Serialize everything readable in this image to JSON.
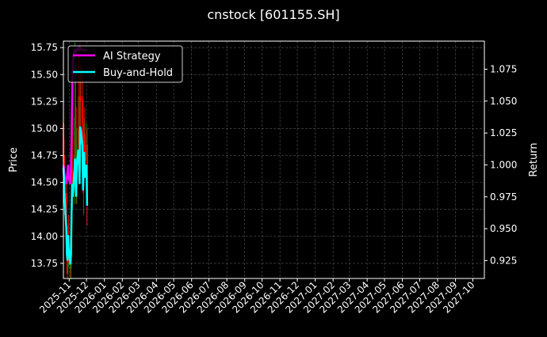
{
  "chart_data": {
    "type": "line",
    "title": "cnstock [601155.SH]",
    "ylabel": "Price",
    "y2label": "Return",
    "ylim": [
      13.61,
      15.81
    ],
    "y2lim": [
      0.911,
      1.097
    ],
    "xlim": [
      "2025-10-22",
      "2027-10-21"
    ],
    "grid": true,
    "legend_placement": "top-left",
    "x_tick_labels": [
      "2025-11",
      "2025-12",
      "2026-01",
      "2026-02",
      "2026-03",
      "2026-04",
      "2026-05",
      "2026-06",
      "2026-07",
      "2026-08",
      "2026-09",
      "2026-10",
      "2026-11",
      "2026-12",
      "2027-01",
      "2027-02",
      "2027-03",
      "2027-04",
      "2027-05",
      "2027-06",
      "2027-07",
      "2027-08",
      "2027-09",
      "2027-10"
    ],
    "y_ticks": [
      "13.75",
      "14.00",
      "14.25",
      "14.50",
      "14.75",
      "15.00",
      "15.25",
      "15.50",
      "15.75"
    ],
    "y2_ticks": [
      "0.925",
      "0.950",
      "0.975",
      "1.000",
      "1.025",
      "1.050",
      "1.075"
    ],
    "dates": [
      "2025-10-22",
      "2025-10-23",
      "2025-10-24",
      "2025-10-27",
      "2025-10-28",
      "2025-10-29",
      "2025-10-30",
      "2025-10-31",
      "2025-11-03",
      "2025-11-04",
      "2025-11-05",
      "2025-11-06",
      "2025-11-07",
      "2025-11-10",
      "2025-11-11",
      "2025-11-12",
      "2025-11-13",
      "2025-11-14",
      "2025-11-17",
      "2025-11-18",
      "2025-11-19",
      "2025-11-20",
      "2025-11-21",
      "2025-11-24",
      "2025-11-25",
      "2025-11-26",
      "2025-11-27",
      "2025-11-28",
      "2025-12-01",
      "2025-12-02"
    ],
    "candles": {
      "open": [
        15.05,
        14.7,
        14.6,
        14.4,
        14.05,
        13.8,
        13.72,
        14.0,
        13.85,
        13.7,
        13.82,
        14.25,
        14.6,
        14.45,
        14.75,
        14.9,
        14.7,
        14.45,
        14.85,
        15.0,
        14.8,
        14.6,
        15.3,
        15.25,
        15.05,
        14.55,
        14.75,
        14.95,
        14.7,
        14.85
      ],
      "high": [
        15.2,
        14.9,
        14.75,
        14.55,
        14.2,
        14.05,
        14.1,
        14.2,
        14.0,
        13.95,
        14.4,
        14.8,
        15.4,
        15.1,
        15.8,
        15.6,
        15.2,
        15.0,
        15.3,
        15.7,
        15.2,
        15.5,
        15.6,
        15.55,
        15.3,
        14.95,
        15.1,
        15.2,
        15.05,
        15.0
      ],
      "low": [
        14.55,
        14.45,
        14.2,
        13.9,
        13.65,
        13.6,
        13.65,
        13.75,
        13.62,
        13.6,
        13.75,
        14.1,
        14.3,
        14.3,
        14.55,
        14.6,
        14.3,
        14.3,
        14.65,
        14.7,
        14.5,
        14.5,
        15.0,
        14.9,
        14.4,
        14.2,
        14.55,
        14.6,
        14.5,
        14.1
      ],
      "close": [
        14.7,
        14.6,
        14.4,
        14.05,
        13.8,
        13.72,
        14.0,
        13.85,
        13.7,
        13.82,
        14.25,
        14.6,
        14.45,
        14.75,
        14.9,
        14.7,
        14.45,
        14.85,
        15.0,
        14.8,
        14.6,
        15.3,
        15.25,
        15.05,
        14.55,
        14.75,
        14.95,
        14.7,
        14.85,
        14.3
      ]
    },
    "series": [
      {
        "name": "AI Strategy",
        "color": "#ff00ff",
        "values": [
          1.0,
          0.998,
          0.992,
          0.985,
          0.99,
          0.995,
          1.0,
          0.99,
          0.985,
          0.995,
          1.02,
          1.05,
          1.08,
          1.09,
          1.09,
          1.09,
          1.088,
          1.09,
          1.092,
          1.09,
          1.09,
          1.092,
          1.091,
          1.09,
          1.09,
          1.09,
          1.09,
          1.09,
          1.09,
          1.09
        ]
      },
      {
        "name": "Buy-and-Hold",
        "color": "#00ffff",
        "values": [
          0.998,
          0.99,
          0.975,
          0.95,
          0.93,
          0.925,
          0.945,
          0.935,
          0.922,
          0.93,
          0.96,
          0.985,
          0.975,
          0.995,
          1.005,
          0.99,
          0.975,
          1.0,
          1.012,
          0.998,
          0.985,
          1.03,
          1.028,
          1.015,
          0.98,
          0.995,
          1.01,
          0.99,
          1.0,
          0.968
        ]
      }
    ],
    "up_color": "#008000",
    "down_color": "#ff0000"
  }
}
